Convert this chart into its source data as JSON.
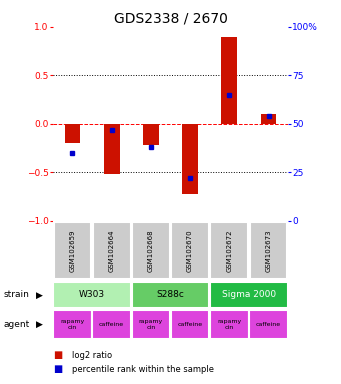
{
  "title": "GDS2338 / 2670",
  "samples": [
    "GSM102659",
    "GSM102664",
    "GSM102668",
    "GSM102670",
    "GSM102672",
    "GSM102673"
  ],
  "log2_ratio": [
    -0.2,
    -0.52,
    -0.22,
    -0.72,
    0.9,
    0.1
  ],
  "percentile_rank": [
    35,
    47,
    38,
    22,
    65,
    54
  ],
  "ylim_left": [
    -1,
    1
  ],
  "ylim_right": [
    0,
    100
  ],
  "yticks_left": [
    -1,
    -0.5,
    0,
    0.5,
    1
  ],
  "yticks_right": [
    0,
    25,
    50,
    75,
    100
  ],
  "strain_labels": [
    {
      "label": "W303",
      "color": "#b2f0b2",
      "span": [
        0,
        2
      ]
    },
    {
      "label": "S288c",
      "color": "#66cc66",
      "span": [
        2,
        4
      ]
    },
    {
      "label": "Sigma 2000",
      "color": "#22bb44",
      "span": [
        4,
        6
      ]
    }
  ],
  "agent_labels": [
    {
      "label": "rapamycin",
      "color": "#dd44dd",
      "span": [
        0,
        1
      ]
    },
    {
      "label": "caffeine",
      "color": "#dd44dd",
      "span": [
        1,
        2
      ]
    },
    {
      "label": "rapamycin",
      "color": "#dd44dd",
      "span": [
        2,
        3
      ]
    },
    {
      "label": "caffeine",
      "color": "#dd44dd",
      "span": [
        3,
        4
      ]
    },
    {
      "label": "rapamycin",
      "color": "#dd44dd",
      "span": [
        4,
        5
      ]
    },
    {
      "label": "caffeine",
      "color": "#dd44dd",
      "span": [
        5,
        6
      ]
    }
  ],
  "bar_color_red": "#cc1100",
  "bar_color_blue": "#0000cc",
  "bar_width": 0.4,
  "sample_box_color": "#cccccc",
  "title_fontsize": 10,
  "tick_fontsize": 6.5,
  "legend_items": [
    {
      "color": "#cc1100",
      "label": "log2 ratio"
    },
    {
      "color": "#0000cc",
      "label": "percentile rank within the sample"
    }
  ]
}
